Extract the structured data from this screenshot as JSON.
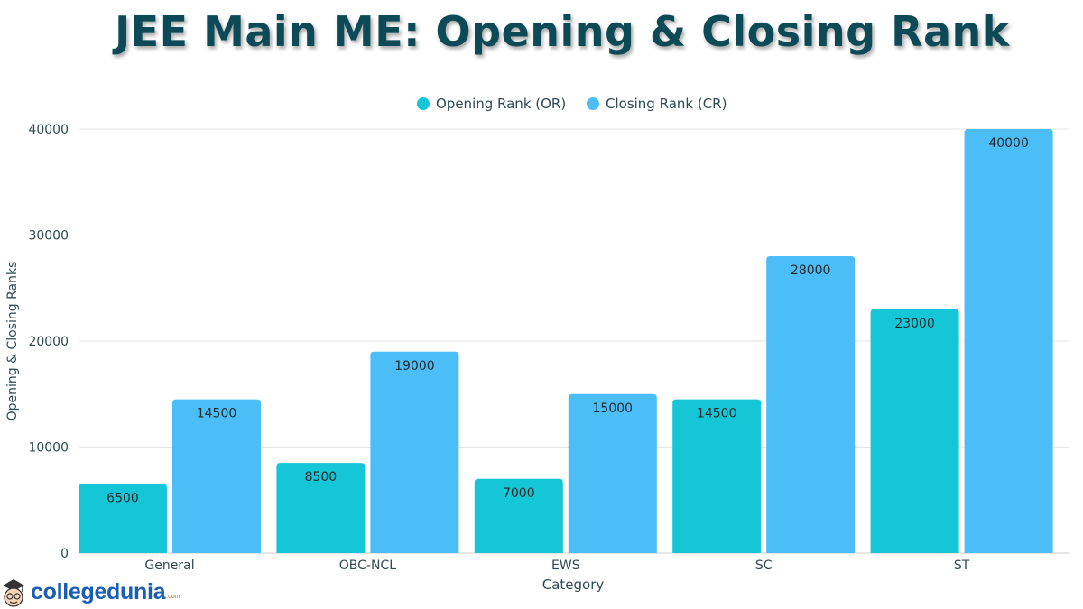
{
  "chart_data": {
    "type": "bar",
    "title": "JEE Main ME: Opening & Closing Rank",
    "xlabel": "Category",
    "ylabel": "Opening & Closing Ranks",
    "categories": [
      "General",
      "OBC-NCL",
      "EWS",
      "SC",
      "ST"
    ],
    "series": [
      {
        "name": "Opening Rank (OR)",
        "color": "#15c6d6",
        "values": [
          6500,
          8500,
          7000,
          14500,
          23000
        ]
      },
      {
        "name": "Closing Rank (CR)",
        "color": "#4bbdf7",
        "values": [
          14500,
          19000,
          15000,
          28000,
          40000
        ]
      }
    ],
    "ylim": [
      0,
      40000
    ],
    "yticks": [
      "0",
      "10000",
      "20000",
      "30000",
      "40000"
    ],
    "grid": true,
    "legend": "top-center"
  },
  "brand": {
    "name": "collegedunia",
    "domain": ".com"
  },
  "colors": {
    "title": "#0d4a57",
    "axis_text": "#2f4a52",
    "grid": "#e4e4e4",
    "brand": "#1a5db5"
  }
}
